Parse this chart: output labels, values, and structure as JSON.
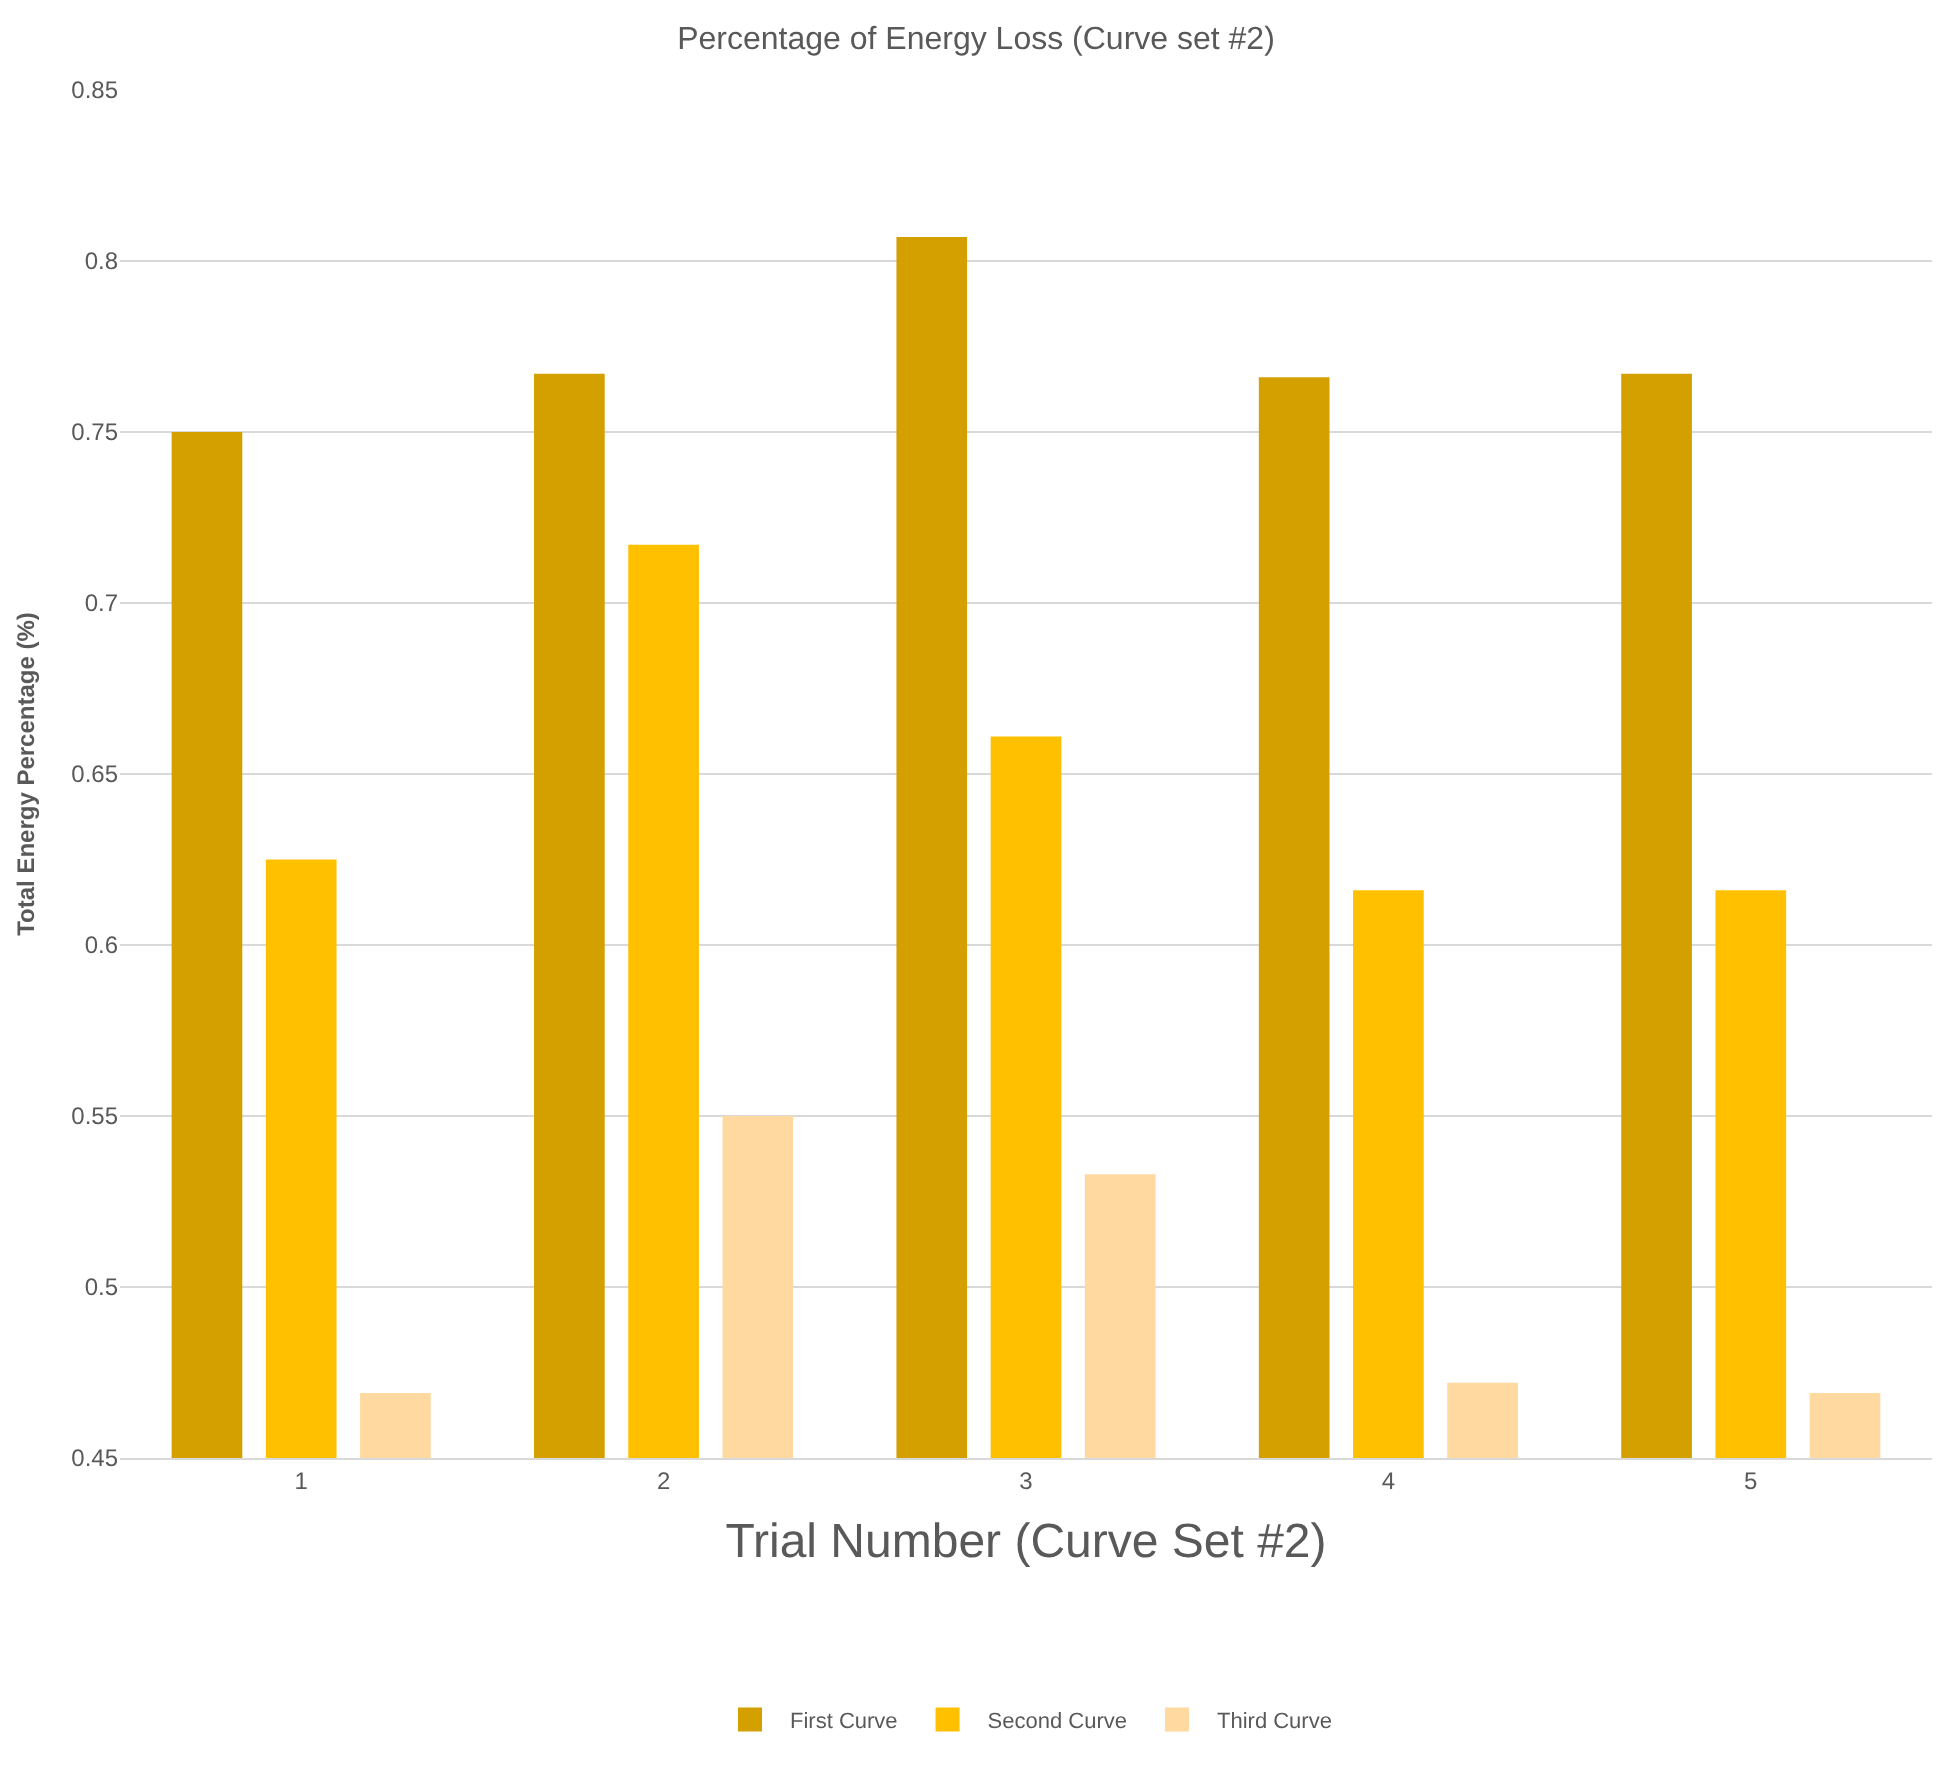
{
  "chart_data": {
    "type": "bar",
    "title": "Percentage of Energy Loss (Curve set #2)",
    "xlabel": "Trial Number (Curve Set #2)",
    "ylabel": "Total Energy Percentage (%)",
    "categories": [
      "1",
      "2",
      "3",
      "4",
      "5"
    ],
    "series": [
      {
        "name": "First Curve",
        "color": "#d4a000",
        "values": [
          0.75,
          0.767,
          0.807,
          0.766,
          0.767
        ]
      },
      {
        "name": "Second Curve",
        "color": "#ffc000",
        "values": [
          0.625,
          0.717,
          0.661,
          0.616,
          0.616
        ]
      },
      {
        "name": "Third Curve",
        "color": "#ffd9a0",
        "values": [
          0.469,
          0.55,
          0.533,
          0.472,
          0.469
        ]
      }
    ],
    "ylim": [
      0.45,
      0.85
    ],
    "yticks": [
      0.45,
      0.5,
      0.55,
      0.6,
      0.65,
      0.7,
      0.75,
      0.8,
      0.85
    ],
    "grid": "y",
    "legend": "bottom"
  }
}
